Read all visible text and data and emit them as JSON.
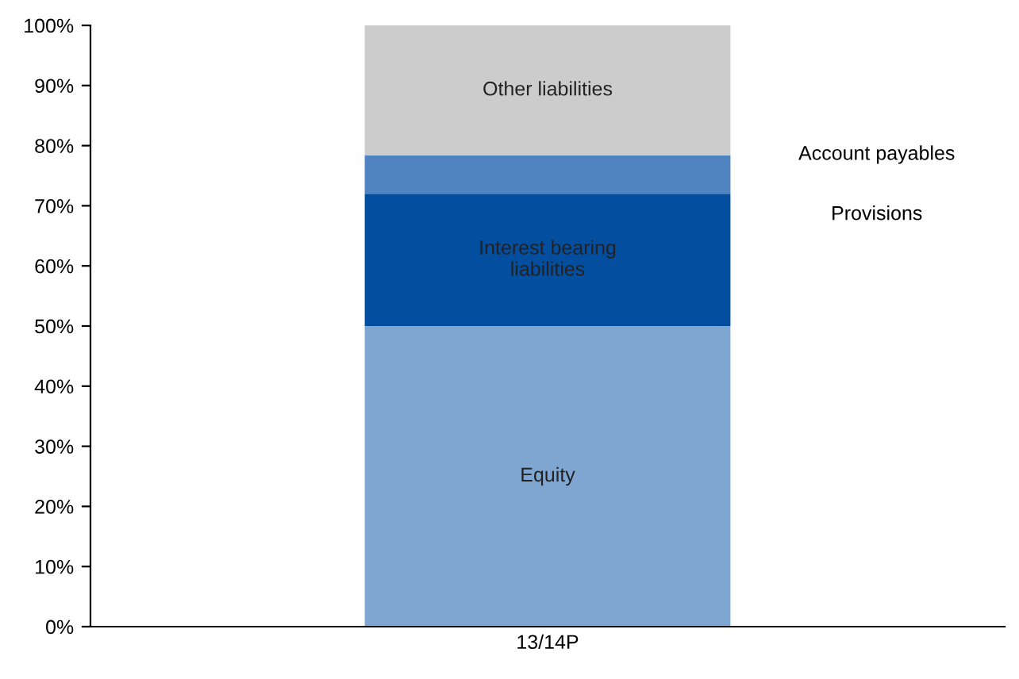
{
  "chart_data": {
    "type": "bar",
    "stacked": true,
    "categories": [
      "13/14P"
    ],
    "series": [
      {
        "name": "Equity",
        "color": "#7fa6d0",
        "values": [
          50
        ]
      },
      {
        "name": "Interest bearing\nliabilities",
        "color": "#044ea0",
        "values": [
          22
        ]
      },
      {
        "color": "#4f84c0",
        "values": [
          6.4
        ]
      },
      {
        "name": "Other liabilities",
        "color": "#cccccc",
        "values": [
          21.6
        ]
      }
    ],
    "ylim": [
      0,
      100
    ],
    "yticks": [
      {
        "value": 0,
        "label": "0%"
      },
      {
        "value": 10,
        "label": "10%"
      },
      {
        "value": 20,
        "label": "20%"
      },
      {
        "value": 30,
        "label": "30%"
      },
      {
        "value": 40,
        "label": "40%"
      },
      {
        "value": 50,
        "label": "50%"
      },
      {
        "value": 60,
        "label": "60%"
      },
      {
        "value": 70,
        "label": "70%"
      },
      {
        "value": 80,
        "label": "80%"
      },
      {
        "value": 90,
        "label": "90%"
      },
      {
        "value": 100,
        "label": "100%"
      }
    ],
    "annotations": [
      "Account payables",
      "Provisions"
    ],
    "grid": false,
    "legend": false
  }
}
